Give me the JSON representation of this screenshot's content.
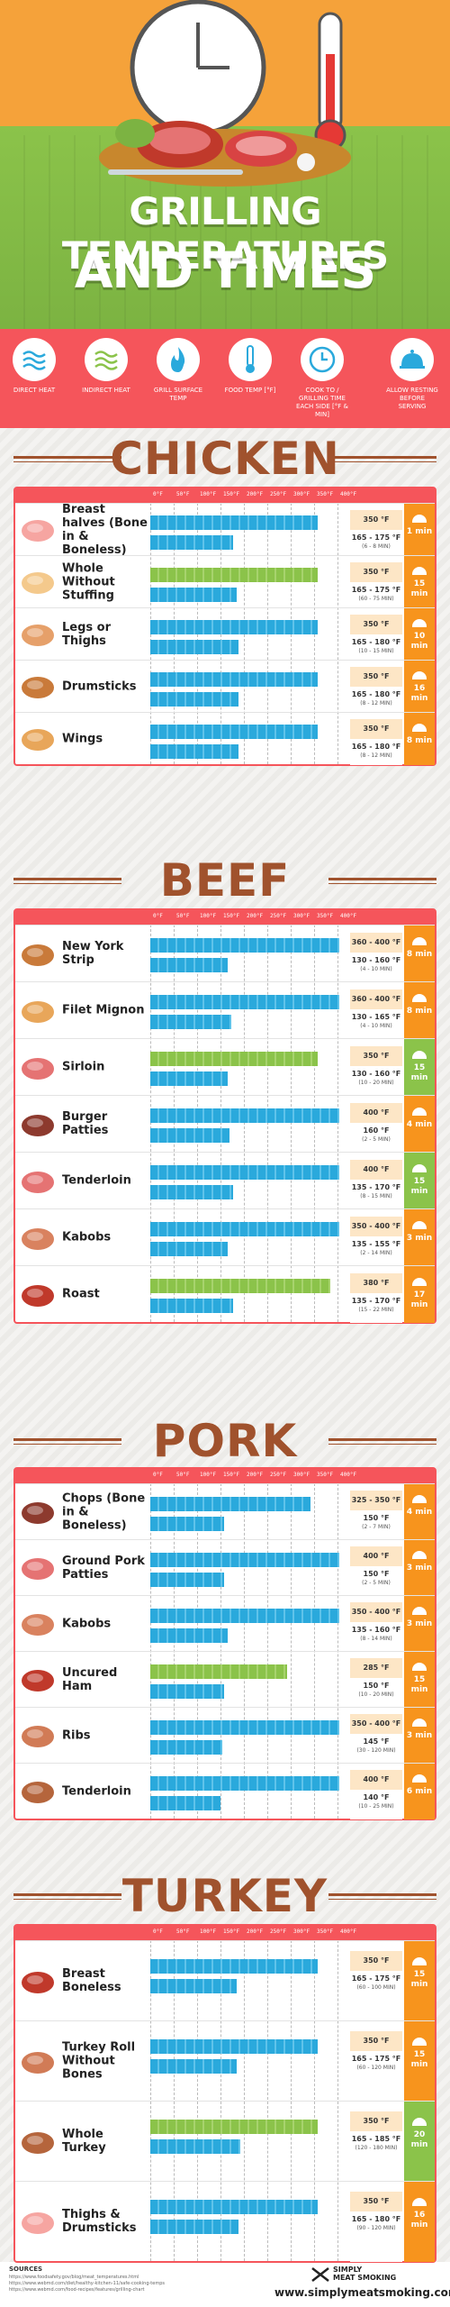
{
  "header": {
    "title_line1": "GRILLING TEMPERATURES",
    "title_line2": "AND TIMES"
  },
  "legend": [
    {
      "label": "DIRECT HEAT",
      "icon": "direct-heat-icon"
    },
    {
      "label": "INDIRECT HEAT",
      "icon": "indirect-heat-icon"
    },
    {
      "label": "GRILL SURFACE TEMP",
      "icon": "grill-flame-icon"
    },
    {
      "label": "FOOD TEMP [°F]",
      "icon": "thermometer-icon"
    },
    {
      "label": "COOK TO / GRILLING TIME EACH SIDE [°F & MIN]",
      "icon": "clock-icon"
    },
    {
      "label": "ALLOW RESTING BEFORE SERVING",
      "icon": "cloche-icon"
    }
  ],
  "scale": [
    "0°F",
    "50°F",
    "100°F",
    "150°F",
    "200°F",
    "250°F",
    "300°F",
    "350°F",
    "400°F"
  ],
  "colors": {
    "accent": "#f5555b",
    "section": "#a0522d",
    "rest_orange": "#f7941d",
    "rest_green": "#8bc34a",
    "direct": "#2aa9dc",
    "indirect": "#8bc34a"
  },
  "sections": {
    "chicken": {
      "title": "CHICKEN",
      "items": [
        {
          "name": "Breast halves (Bone in & Boneless)",
          "grill": "350 °F",
          "food": "165 - 175 °F",
          "time": "(6 - 8 MIN)",
          "rest": "1 min"
        },
        {
          "name": "Whole Without Stuffing",
          "grill": "350 °F",
          "food": "165 - 175 °F",
          "time": "(60 - 75 MIN)",
          "rest": "15 min"
        },
        {
          "name": "Legs or Thighs",
          "grill": "350 °F",
          "food": "165 - 180 °F",
          "time": "(10 - 15 MIN)",
          "rest": "10 min"
        },
        {
          "name": "Drumsticks",
          "grill": "350 °F",
          "food": "165 - 180 °F",
          "time": "(8 - 12 MIN)",
          "rest": "16 min"
        },
        {
          "name": "Wings",
          "grill": "350 °F",
          "food": "165 - 180 °F",
          "time": "(8 - 12 MIN)",
          "rest": "8 min"
        }
      ]
    },
    "beef": {
      "title": "BEEF",
      "items": [
        {
          "name": "New York Strip",
          "grill": "360 - 400 °F",
          "food": "130 - 160 °F",
          "time": "(4 - 10 MIN)",
          "rest": "8 min"
        },
        {
          "name": "Filet Mignon",
          "grill": "360 - 400 °F",
          "food": "130 - 165 °F",
          "time": "(4 - 10 MIN)",
          "rest": "8 min"
        },
        {
          "name": "Sirloin",
          "grill": "350 °F",
          "food": "130 - 160 °F",
          "time": "(10 - 20 MIN)",
          "rest": "15 min"
        },
        {
          "name": "Burger Patties",
          "grill": "400 °F",
          "food": "160 °F",
          "time": "(2 - 5 MIN)",
          "rest": "4 min"
        },
        {
          "name": "Tenderloin",
          "grill": "400 °F",
          "food": "135 - 170 °F",
          "time": "(8 - 15 MIN)",
          "rest": "15 min"
        },
        {
          "name": "Kabobs",
          "grill": "350 - 400 °F",
          "food": "135 - 155 °F",
          "time": "(2 - 14 MIN)",
          "rest": "3 min"
        },
        {
          "name": "Roast",
          "grill": "380 °F",
          "food": "135 - 170 °F",
          "time": "(15 - 22 MIN)",
          "rest": "17 min"
        }
      ]
    },
    "pork": {
      "title": "PORK",
      "items": [
        {
          "name": "Chops (Bone in & Boneless)",
          "grill": "325 - 350 °F",
          "food": "150 °F",
          "time": "(2 - 7 MIN)",
          "rest": "4 min"
        },
        {
          "name": "Ground Pork Patties",
          "grill": "400 °F",
          "food": "150 °F",
          "time": "(2 - 5 MIN)",
          "rest": "3 min"
        },
        {
          "name": "Kabobs",
          "grill": "350 - 400 °F",
          "food": "135 - 160 °F",
          "time": "(8 - 14 MIN)",
          "rest": "3 min"
        },
        {
          "name": "Uncured Ham",
          "grill": "285 °F",
          "food": "150 °F",
          "time": "(10 - 20 MIN)",
          "rest": "15 min"
        },
        {
          "name": "Ribs",
          "grill": "350 - 400 °F",
          "food": "145 °F",
          "time": "(30 - 120 MIN)",
          "rest": "3 min"
        },
        {
          "name": "Tenderloin",
          "grill": "400 °F",
          "food": "140 °F",
          "time": "(10 - 25 MIN)",
          "rest": "6 min"
        }
      ]
    },
    "turkey": {
      "title": "TURKEY",
      "items": [
        {
          "name": "Breast Boneless",
          "grill": "350 °F",
          "food": "165 - 175 °F",
          "time": "(60 - 100 MIN)",
          "rest": "15 min"
        },
        {
          "name": "Turkey Roll Without Bones",
          "grill": "350 °F",
          "food": "165 - 175 °F",
          "time": "(60 - 120 MIN)",
          "rest": "15 min"
        },
        {
          "name": "Whole Turkey",
          "grill": "350 °F",
          "food": "165 - 185 °F",
          "time": "(120 - 180 MIN)",
          "rest": "20 min"
        },
        {
          "name": "Thighs & Drumsticks",
          "grill": "350 °F",
          "food": "165 - 180 °F",
          "time": "(90 - 120 MIN)",
          "rest": "16 min"
        }
      ]
    }
  },
  "footer": {
    "sources_label": "SOURCES",
    "sources": [
      "https://www.foodsafety.gov/blog/meat_temperatures.html",
      "https://www.webmd.com/diet/healthy-kitchen-11/safe-cooking-temps",
      "https://www.webmd.com/food-recipes/features/grilling-chart"
    ],
    "brand_line1": "SIMPLY",
    "brand_line2": "MEAT SMOKING",
    "site": "www.simplymeatsmoking.com"
  }
}
